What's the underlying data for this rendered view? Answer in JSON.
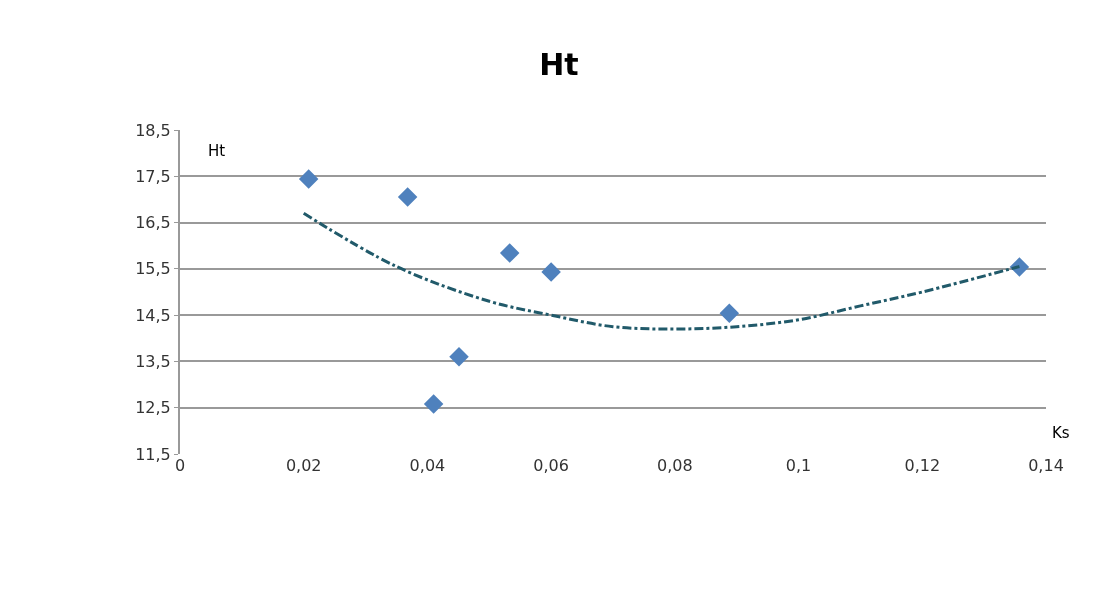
{
  "chart_data": {
    "type": "scatter",
    "title": "Ht",
    "xlabel": "Ks",
    "ylabel": "Ht",
    "x": [
      0.0208,
      0.0368,
      0.041,
      0.0451,
      0.0533,
      0.06,
      0.0888,
      0.1357
    ],
    "series": [
      {
        "color": "#4f81bd",
        "values": [
          17.44,
          17.05,
          12.58,
          13.6,
          15.84,
          15.43,
          14.54,
          15.54
        ],
        "marker": "diamond"
      },
      {
        "type": "line",
        "color": "#215a6a",
        "line_style": "dashed",
        "marker": "none",
        "x": [
          0.02,
          0.035,
          0.05,
          0.06,
          0.07,
          0.08,
          0.09,
          0.1,
          0.11,
          0.12,
          0.1357
        ],
        "values": [
          16.7,
          15.55,
          14.8,
          14.5,
          14.25,
          14.2,
          14.25,
          14.4,
          14.7,
          15.0,
          15.55
        ]
      }
    ],
    "xlim": [
      0,
      0.14
    ],
    "xticks": [
      {
        "value": 0,
        "label": "0"
      },
      {
        "value": 0.02,
        "label": "0,02"
      },
      {
        "value": 0.04,
        "label": "0,04"
      },
      {
        "value": 0.06,
        "label": "0,06"
      },
      {
        "value": 0.08,
        "label": "0,08"
      },
      {
        "value": 0.1,
        "label": "0,1"
      },
      {
        "value": 0.12,
        "label": "0,12"
      },
      {
        "value": 0.14,
        "label": "0,14"
      }
    ],
    "ylim": [
      11.5,
      18.5
    ],
    "yticks": [
      {
        "value": 11.5,
        "label": "11,5"
      },
      {
        "value": 12.5,
        "label": "12,5"
      },
      {
        "value": 13.5,
        "label": "13,5"
      },
      {
        "value": 14.5,
        "label": "14,5"
      },
      {
        "value": 15.5,
        "label": "15,5"
      },
      {
        "value": 16.5,
        "label": "16,5"
      },
      {
        "value": 17.5,
        "label": "17,5"
      },
      {
        "value": 18.5,
        "label": "18,5"
      }
    ],
    "grid": "y",
    "legend": false
  }
}
